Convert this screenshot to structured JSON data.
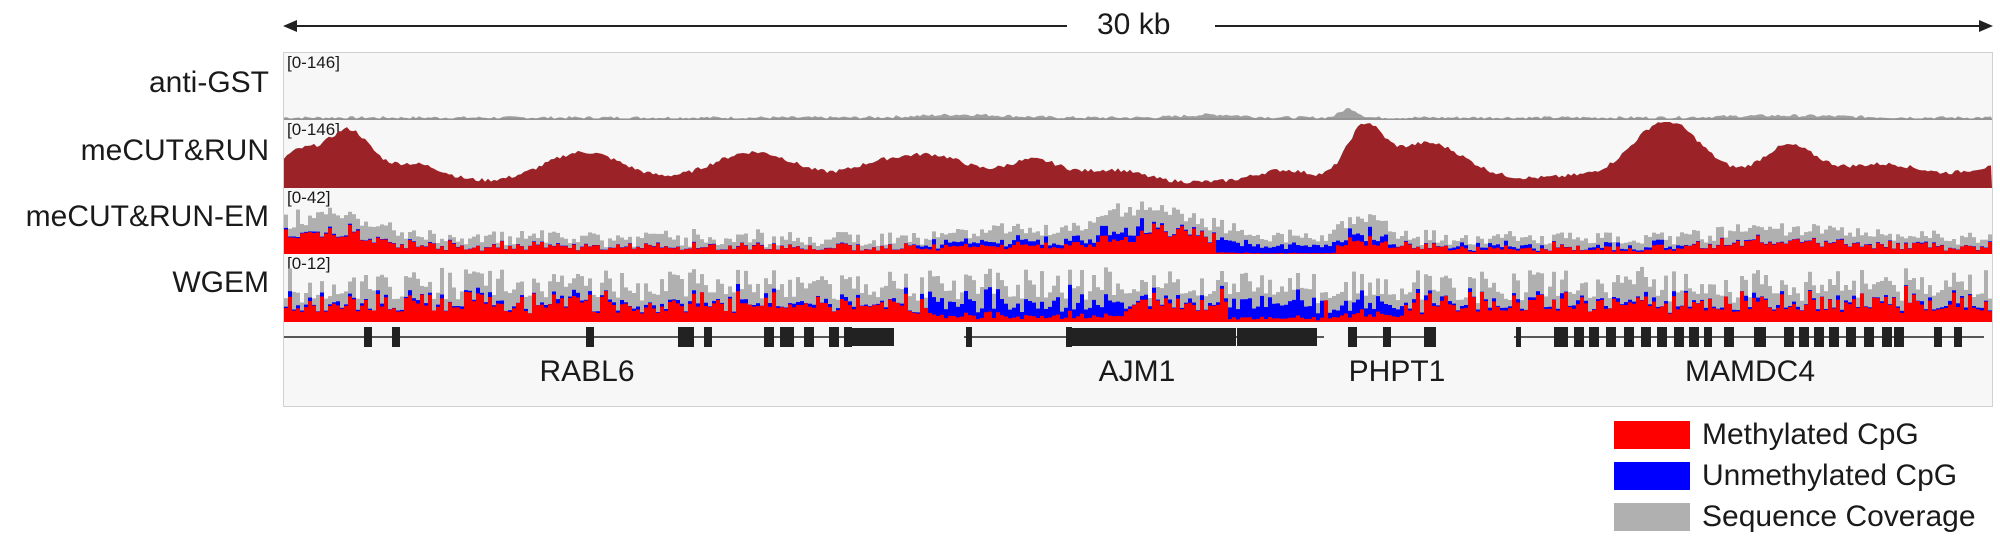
{
  "scale": {
    "label": "30 kb"
  },
  "tracks": [
    {
      "label": "anti-GST",
      "range": "[0-146]"
    },
    {
      "label": "meCUT&RUN",
      "range": "[0-146]"
    },
    {
      "label": "meCUT&RUN-EM",
      "range": "[0-42]"
    },
    {
      "label": "WGEM",
      "range": "[0-12]"
    }
  ],
  "genes": [
    {
      "name": "RABL6"
    },
    {
      "name": "AJM1"
    },
    {
      "name": "PHPT1"
    },
    {
      "name": "MAMDC4"
    }
  ],
  "legend": [
    {
      "label": "Methylated CpG",
      "color": "#ff0000"
    },
    {
      "label": "Unmethylated CpG",
      "color": "#0000ff"
    },
    {
      "label": "Sequence Coverage",
      "color": "#b0b0b0"
    }
  ],
  "colors": {
    "signal": "#9b2226",
    "background_track": "#a0a0a0",
    "gene": "#222222"
  }
}
